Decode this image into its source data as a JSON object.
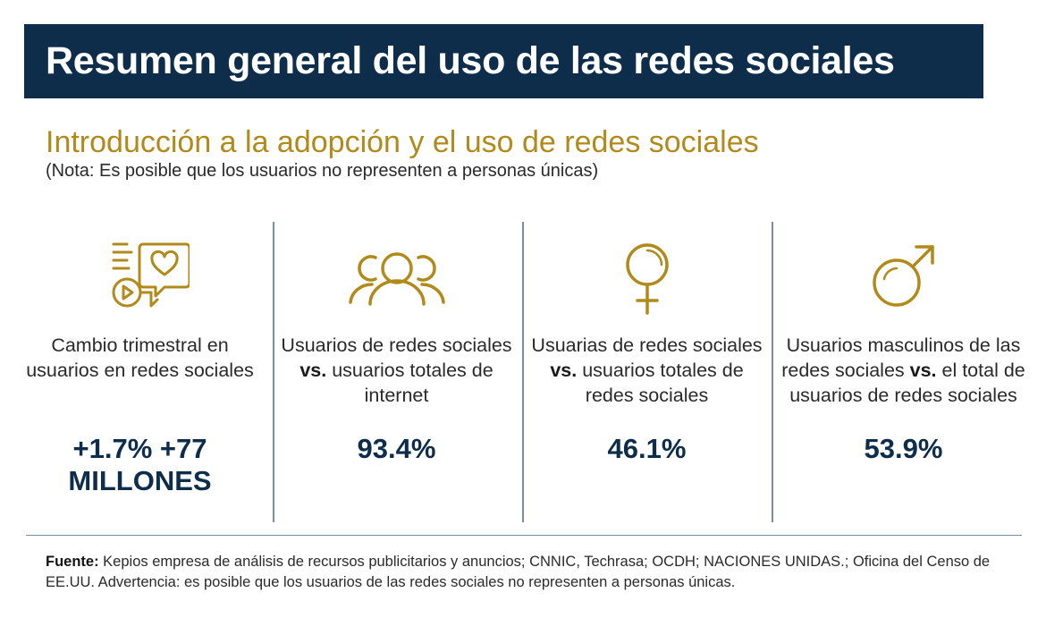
{
  "header": {
    "title": "Resumen general del uso de las redes sociales"
  },
  "intro": {
    "subtitle": "Introducción a la adopción y el uso de redes sociales",
    "note": "(Nota: Es posible que los usuarios no representen a personas únicas)"
  },
  "colors": {
    "banner": "#0d2d4b",
    "accent_gold": "#b08a1a",
    "value_navy": "#0d2d4b",
    "divider": "#7a8ea3"
  },
  "stats": [
    {
      "icon": "social-media-icon",
      "label": "Cambio trimestral en usuarios en redes sociales",
      "value_line1": "+1.7% +77",
      "value_line2": "MILLONES"
    },
    {
      "icon": "users-group-icon",
      "label_pre": "Usuarios de redes sociales ",
      "label_bold": "vs.",
      "label_post": " usuarios totales de internet",
      "value": "93.4%"
    },
    {
      "icon": "female-symbol-icon",
      "label_pre": "Usuarias de redes sociales ",
      "label_bold": "vs.",
      "label_post": " usuarios totales de redes sociales",
      "value": "46.1%"
    },
    {
      "icon": "male-symbol-icon",
      "label_pre": "Usuarios masculinos de las redes sociales ",
      "label_bold": "vs.",
      "label_post": " el total de usuarios de redes sociales",
      "value": "53.9%"
    }
  ],
  "source": {
    "label": "Fuente:",
    "text": " Kepios empresa de análisis de recursos publicitarios y anuncios; CNNIC, Techrasa; OCDH; NACIONES UNIDAS.; Oficina del Censo de EE.UU. Advertencia: es posible que los usuarios de las redes sociales no representen a personas únicas."
  }
}
